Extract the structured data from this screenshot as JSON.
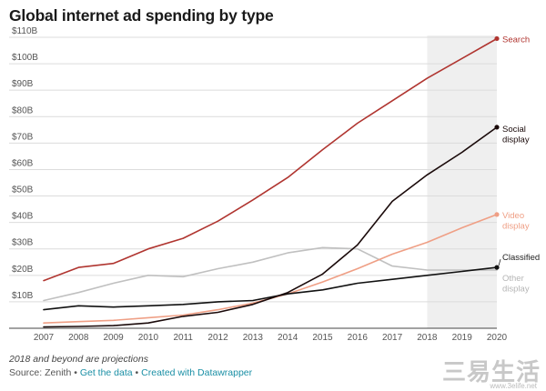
{
  "chart_data": {
    "type": "line",
    "title": "Global internet ad spending by type",
    "xlabel": "",
    "ylabel": "",
    "x": [
      2007,
      2008,
      2009,
      2010,
      2011,
      2012,
      2013,
      2014,
      2015,
      2016,
      2017,
      2018,
      2019,
      2020
    ],
    "ylim": [
      0,
      110
    ],
    "yticks": [
      10,
      20,
      30,
      40,
      50,
      60,
      70,
      80,
      90,
      100,
      110
    ],
    "ytick_labels": [
      "$10B",
      "$20B",
      "$30B",
      "$40B",
      "$50B",
      "$60B",
      "$70B",
      "$80B",
      "$90B",
      "$100B",
      "$110B"
    ],
    "projection_range": [
      2018,
      2020
    ],
    "grid": true,
    "series": [
      {
        "name": "Search",
        "label_lines": [
          "Search"
        ],
        "color": "#b03530",
        "values": [
          18,
          23,
          24.5,
          30,
          34,
          40.5,
          48.5,
          57,
          67.5,
          77.5,
          86,
          94.5,
          102,
          109.5
        ]
      },
      {
        "name": "Social display",
        "label_lines": [
          "Social",
          "display"
        ],
        "color": "#1a0a0a",
        "values": [
          0.5,
          0.7,
          1,
          2,
          4.5,
          6,
          9,
          13.5,
          20.5,
          31.5,
          48,
          58,
          66.5,
          76
        ]
      },
      {
        "name": "Video display",
        "label_lines": [
          "Video",
          "display"
        ],
        "color": "#ef9f85",
        "values": [
          2,
          2.5,
          3,
          4,
          5,
          7,
          9.5,
          13,
          17.5,
          22.5,
          28,
          32.5,
          38,
          43
        ]
      },
      {
        "name": "Classified",
        "label_lines": [
          "Classified"
        ],
        "color": "#111111",
        "values": [
          7,
          8.5,
          8,
          8.5,
          9,
          10,
          10.5,
          13,
          14.5,
          17,
          18.5,
          20,
          21.5,
          23
        ]
      },
      {
        "name": "Other display",
        "label_lines": [
          "Other",
          "display"
        ],
        "color": "#c0c0c0",
        "values": [
          10.5,
          13.5,
          17,
          20,
          19.5,
          22.5,
          25,
          28.5,
          30.5,
          30,
          23.5,
          22,
          22,
          22
        ]
      }
    ]
  },
  "footer": {
    "note": "2018 and beyond are projections",
    "source_prefix": "Source: Zenith",
    "separator": "•",
    "get_data": "Get the data",
    "created_with": "Created with Datawrapper"
  },
  "watermark": {
    "text": "三易生活",
    "url": "www.3elife.net"
  }
}
